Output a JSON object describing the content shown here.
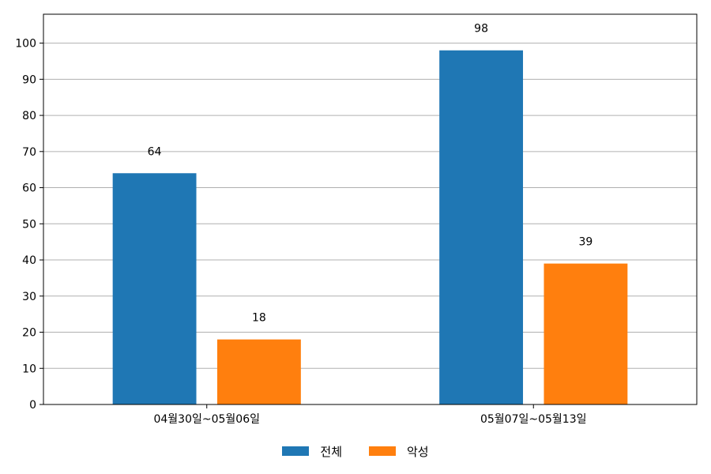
{
  "chart_data": {
    "type": "bar",
    "categories": [
      "04월30일~05월06일",
      "05월07일~05월13일"
    ],
    "series": [
      {
        "name": "전체",
        "values": [
          64,
          98
        ],
        "color": "#1f77b4"
      },
      {
        "name": "악성",
        "values": [
          18,
          39
        ],
        "color": "#ff7f0e"
      }
    ],
    "ylim": [
      0,
      108
    ],
    "yticks": [
      0,
      10,
      20,
      30,
      40,
      50,
      60,
      70,
      80,
      90,
      100
    ],
    "grid": "horizontal",
    "legend_position": "bottom-center",
    "data_labels": true
  }
}
